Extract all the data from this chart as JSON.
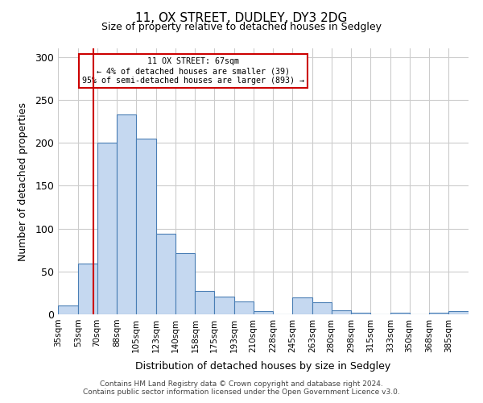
{
  "title": "11, OX STREET, DUDLEY, DY3 2DG",
  "subtitle": "Size of property relative to detached houses in Sedgley",
  "xlabel": "Distribution of detached houses by size in Sedgley",
  "ylabel": "Number of detached properties",
  "footer_line1": "Contains HM Land Registry data © Crown copyright and database right 2024.",
  "footer_line2": "Contains public sector information licensed under the Open Government Licence v3.0.",
  "bin_labels": [
    "35sqm",
    "53sqm",
    "70sqm",
    "88sqm",
    "105sqm",
    "123sqm",
    "140sqm",
    "158sqm",
    "175sqm",
    "193sqm",
    "210sqm",
    "228sqm",
    "245sqm",
    "263sqm",
    "280sqm",
    "298sqm",
    "315sqm",
    "333sqm",
    "350sqm",
    "368sqm",
    "385sqm"
  ],
  "bar_values": [
    10,
    59,
    200,
    233,
    205,
    94,
    71,
    27,
    21,
    15,
    4,
    0,
    20,
    14,
    5,
    2,
    0,
    2,
    0,
    2,
    4
  ],
  "bar_color": "#c5d8f0",
  "bar_edge_color": "#4a7eb5",
  "ylim": [
    0,
    310
  ],
  "yticks": [
    0,
    50,
    100,
    150,
    200,
    250,
    300
  ],
  "property_size": 67,
  "property_label": "11 OX STREET: 67sqm",
  "annotation_line1": "← 4% of detached houses are smaller (39)",
  "annotation_line2": "95% of semi-detached houses are larger (893) →",
  "vline_x": 67,
  "vline_color": "#cc0000",
  "annotation_box_color": "#ffffff",
  "annotation_box_edge_color": "#cc0000",
  "bin_edges": [
    35,
    53,
    70,
    88,
    105,
    123,
    140,
    158,
    175,
    193,
    210,
    228,
    245,
    263,
    280,
    298,
    315,
    333,
    350,
    368,
    385,
    403
  ],
  "background_color": "#ffffff",
  "grid_color": "#cccccc"
}
